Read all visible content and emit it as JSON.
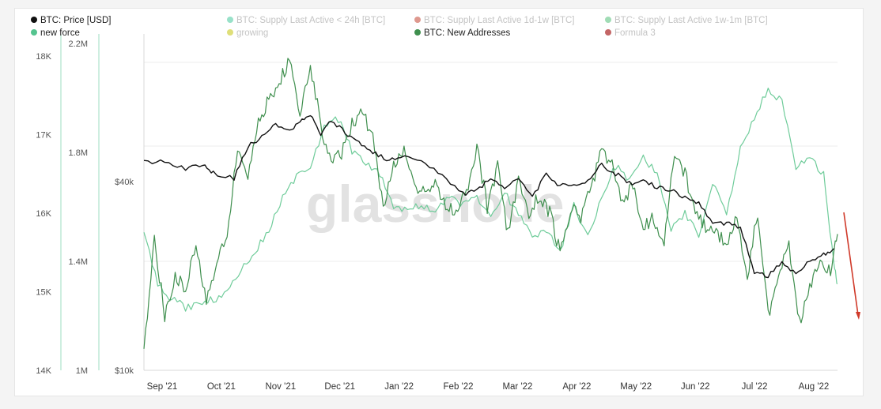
{
  "chart_data": {
    "type": "line",
    "watermark": "glassnode",
    "legend": [
      {
        "label": "BTC: Price [USD]",
        "color": "#111111",
        "muted": false
      },
      {
        "label": "BTC: Supply Last Active < 24h [BTC]",
        "color": "#86dcc0",
        "muted": true
      },
      {
        "label": "BTC: Supply Last Active 1d-1w [BTC]",
        "color": "#d8867a",
        "muted": true
      },
      {
        "label": "BTC: Supply Last Active 1w-1m [BTC]",
        "color": "#8fd6a8",
        "muted": true
      },
      {
        "label": "new force",
        "color": "#55c48f",
        "muted": false
      },
      {
        "label": "growing",
        "color": "#d9d962",
        "muted": true
      },
      {
        "label": "BTC: New Addresses",
        "color": "#3f8f4e",
        "muted": false
      },
      {
        "label": "Formula 3",
        "color": "#b84a4a",
        "muted": true
      }
    ],
    "x_axis": {
      "ticks": [
        "Sep '21",
        "Oct '21",
        "Nov '21",
        "Dec '21",
        "Jan '22",
        "Feb '22",
        "Mar '22",
        "Apr '22",
        "May '22",
        "Jun '22",
        "Jul '22",
        "Aug '22"
      ],
      "xlim": [
        0,
        1
      ]
    },
    "y_axes": [
      {
        "name": "new force axis",
        "ticks": [
          "14K",
          "15K",
          "16K",
          "17K",
          "18K"
        ],
        "tick_values": [
          14000,
          15000,
          16000,
          17000,
          18000
        ],
        "ylim": [
          14000,
          18300
        ]
      },
      {
        "name": "new addresses axis",
        "ticks": [
          "1M",
          "1.4M",
          "1.8M",
          "2.2M"
        ],
        "tick_values": [
          1000000,
          1400000,
          1800000,
          2200000
        ],
        "ylim": [
          1000000,
          2240000
        ]
      },
      {
        "name": "price axis",
        "scale": "log",
        "ticks": [
          "$10k",
          "$40k"
        ],
        "tick_values": [
          10000,
          40000
        ],
        "ylim": [
          10000,
          120000
        ]
      }
    ],
    "grid": true,
    "legend_position": "top",
    "series": [
      {
        "name": "BTC: Price [USD]",
        "color": "#111111",
        "axis": 2,
        "x": [
          0.0,
          0.03,
          0.06,
          0.085,
          0.1,
          0.13,
          0.15,
          0.17,
          0.19,
          0.21,
          0.225,
          0.24,
          0.255,
          0.27,
          0.29,
          0.31,
          0.33,
          0.35,
          0.37,
          0.4,
          0.43,
          0.46,
          0.48,
          0.5,
          0.52,
          0.54,
          0.56,
          0.58,
          0.6,
          0.62,
          0.64,
          0.66,
          0.68,
          0.7,
          0.72,
          0.74,
          0.76,
          0.78,
          0.8,
          0.82,
          0.84,
          0.86,
          0.88,
          0.9,
          0.92,
          0.94,
          0.96,
          0.98,
          0.995
        ],
        "y": [
          46000,
          46500,
          44000,
          45500,
          42500,
          41000,
          52000,
          55500,
          61500,
          58000,
          62000,
          65500,
          57000,
          62500,
          57500,
          53500,
          50000,
          47000,
          48000,
          47500,
          41500,
          36500,
          37500,
          41500,
          38500,
          41000,
          36000,
          42000,
          39000,
          38500,
          40500,
          45500,
          42500,
          39500,
          40000,
          38500,
          37500,
          35500,
          34500,
          29500,
          29600,
          28500,
          20500,
          20000,
          22000,
          20500,
          22500,
          23500,
          24500
        ]
      },
      {
        "name": "new force",
        "color": "#6fcc9a",
        "axis": 0,
        "x": [
          0.0,
          0.02,
          0.04,
          0.06,
          0.08,
          0.1,
          0.12,
          0.14,
          0.16,
          0.18,
          0.2,
          0.22,
          0.24,
          0.26,
          0.28,
          0.3,
          0.32,
          0.34,
          0.36,
          0.38,
          0.4,
          0.42,
          0.44,
          0.46,
          0.48,
          0.5,
          0.52,
          0.54,
          0.56,
          0.58,
          0.6,
          0.62,
          0.64,
          0.66,
          0.68,
          0.7,
          0.72,
          0.74,
          0.76,
          0.78,
          0.8,
          0.82,
          0.84,
          0.86,
          0.88,
          0.9,
          0.92,
          0.94,
          0.96,
          0.98,
          0.995,
          1.0
        ],
        "y": [
          15800,
          15100,
          14900,
          14800,
          14850,
          14900,
          15000,
          15300,
          15500,
          15800,
          16200,
          16450,
          16600,
          17100,
          17200,
          16800,
          16650,
          16500,
          16100,
          16050,
          16100,
          16000,
          16200,
          16100,
          16200,
          15950,
          16250,
          16000,
          15700,
          15800,
          15500,
          16100,
          15700,
          16200,
          16600,
          16400,
          16700,
          16500,
          15800,
          16000,
          15700,
          16400,
          16000,
          16800,
          17200,
          17600,
          17400,
          16600,
          16700,
          16500,
          15300,
          15100
        ]
      },
      {
        "name": "BTC: New Addresses",
        "color": "#3f8f4e",
        "axis": 1,
        "x": [
          0.0,
          0.015,
          0.03,
          0.045,
          0.06,
          0.075,
          0.09,
          0.105,
          0.12,
          0.135,
          0.15,
          0.165,
          0.18,
          0.195,
          0.21,
          0.225,
          0.24,
          0.255,
          0.27,
          0.285,
          0.3,
          0.315,
          0.33,
          0.345,
          0.36,
          0.375,
          0.39,
          0.405,
          0.42,
          0.435,
          0.45,
          0.465,
          0.48,
          0.495,
          0.51,
          0.525,
          0.54,
          0.555,
          0.57,
          0.585,
          0.6,
          0.615,
          0.63,
          0.645,
          0.66,
          0.675,
          0.69,
          0.705,
          0.72,
          0.735,
          0.75,
          0.765,
          0.78,
          0.795,
          0.81,
          0.825,
          0.84,
          0.855,
          0.87,
          0.885,
          0.9,
          0.915,
          0.93,
          0.945,
          0.96,
          0.975,
          0.99,
          1.0
        ],
        "y": [
          1080000,
          1490000,
          1200000,
          1350000,
          1300000,
          1470000,
          1250000,
          1400000,
          1500000,
          1820000,
          1700000,
          1900000,
          2000000,
          2050000,
          2150000,
          1950000,
          2120000,
          1900000,
          1750000,
          1800000,
          1900000,
          1950000,
          1850000,
          1600000,
          1750000,
          1800000,
          1670000,
          1650000,
          1700000,
          1600000,
          1580000,
          1660000,
          1820000,
          1600000,
          1750000,
          1500000,
          1700000,
          1580000,
          1640000,
          1580000,
          1430000,
          1600000,
          1550000,
          1680000,
          1800000,
          1750000,
          1600000,
          1680000,
          1530000,
          1560000,
          1470000,
          1800000,
          1720000,
          1580000,
          1520000,
          1500000,
          1470000,
          1560000,
          1350000,
          1580000,
          1200000,
          1350000,
          1450000,
          1170000,
          1300000,
          1420000,
          1350000,
          1500000
        ]
      }
    ]
  }
}
